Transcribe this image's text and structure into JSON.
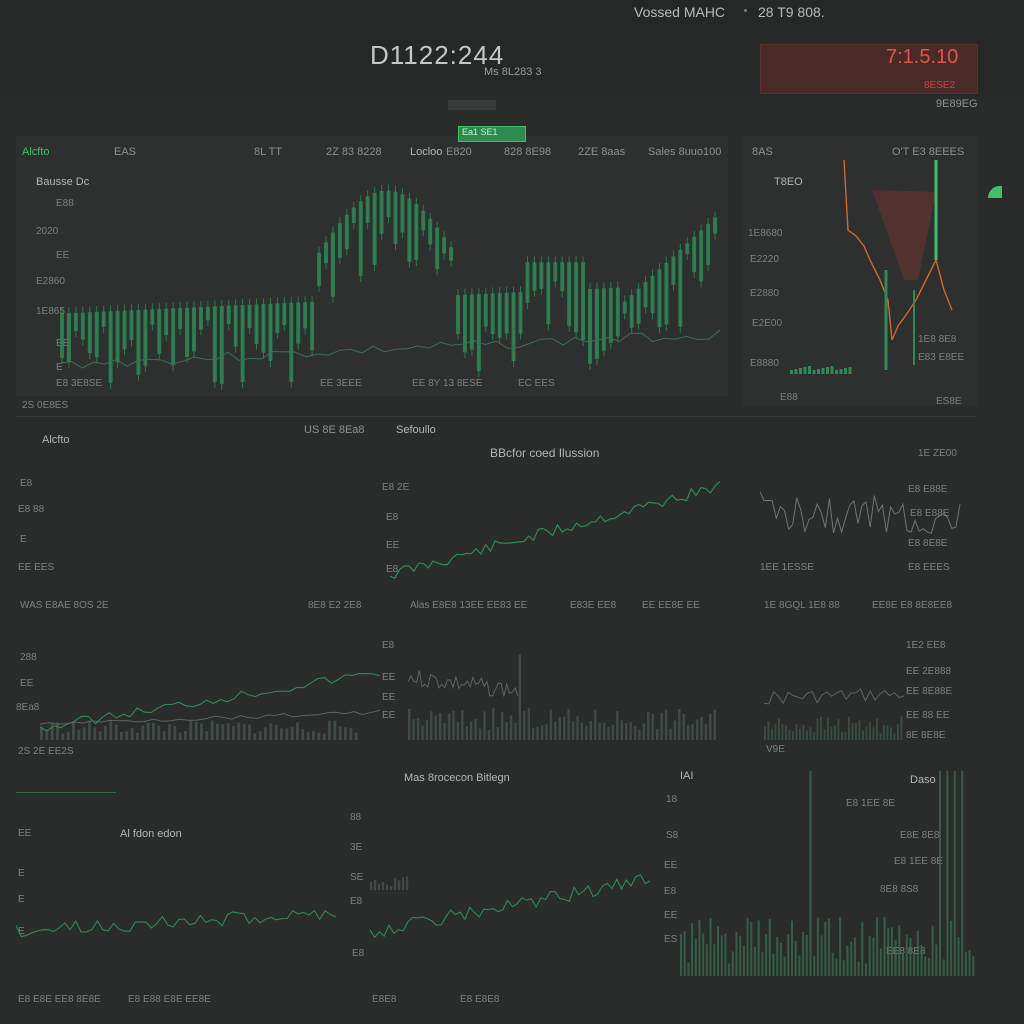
{
  "header": {
    "title": "Vossed MAHC",
    "value": "28 T9 808.",
    "clock": "D1122:244",
    "clock_sub": "Ms 8L283 3",
    "alert_value": "7:1.5.10",
    "alert_sub": "8ESE2",
    "sub_right": "9E89EG",
    "tab_label": "Ea1 SE1"
  },
  "colors": {
    "accent": "#3fbf6a",
    "alert": "#e0524a",
    "bg": "#2a2b2b",
    "panel": "#2e2f2f"
  },
  "top_row": {
    "labels": [
      "Alcfto",
      "EAS",
      "8L TT",
      "2Z 83 8228",
      "Locloo",
      "E820",
      "828 8E98",
      "2ZE 8aas",
      "Sales 8uuo100",
      "8AS",
      "O'T E3 8EEES"
    ],
    "section_title": "Bausse Dc",
    "y_ticks": [
      "E88",
      "2020",
      "EE",
      "E2860",
      "1E865",
      "EE",
      "E"
    ],
    "x_ticks": [
      "E8 3E8SE",
      "EE 3EEE",
      "EE 8Y 13 8ESE",
      "EC EES"
    ],
    "footer_left": "2S 0E8ES",
    "side_title": "T8EO",
    "side_y": [
      "1E8680",
      "E2220",
      "E2880",
      "E2E00",
      "E8880"
    ],
    "side_right_labels": [
      "1E8 8E8",
      "E83 E8EE"
    ],
    "side_footer_left": "E88",
    "side_footer_right": "ES8E"
  },
  "row2": {
    "left_title": "Alcfto",
    "mid_labels": [
      "US 8E 8Ea8",
      "Sefoullo"
    ],
    "center_title": "BBcfor  coed Ilussion",
    "left_y": [
      "E8",
      "E8 88",
      "E",
      "EE EES"
    ],
    "mid_y": [
      "E8 2E",
      "E8",
      "EE",
      "E8"
    ],
    "right_title": "1E ZE00",
    "right_y": [
      "E8 E88E",
      "E8 E88E",
      "E8 8E8E",
      "E8 EEES"
    ],
    "right_footer": "1EE 1ESSE"
  },
  "row3": {
    "labels": [
      "WAS E8AE 8OS 2E",
      "8E8 E2 2E8",
      "Alas E8E8 13EE EE83 EE",
      "E83E EE8",
      "EE EE8E EE",
      "1E 8GQL 1E8 88",
      "EE8E E8 8E8EE8"
    ],
    "left_y": [
      "288",
      "EE",
      "8Ea8"
    ],
    "left_footer": "2S 2E EE2S",
    "mid_y": [
      "E8",
      "EE",
      "EE",
      "EE"
    ],
    "right_y": [
      "1E2 EE8",
      "EE 2E888",
      "EE 8E88E",
      "EE 88 EE",
      "8E 8E8E"
    ],
    "right_footer": "V9E"
  },
  "row4": {
    "center_title": "Mas 8rocecon Bitlegn",
    "left_label": "Al fdon edon",
    "left_y": [
      "EE",
      "E",
      "E",
      "E"
    ],
    "mid_y": [
      "88",
      "3E",
      "SE",
      "E8",
      "E8"
    ],
    "right_title": "IAI",
    "right_label": "Daso",
    "right_y": [
      "18",
      "S8",
      "EE",
      "E8",
      "EE",
      "ES"
    ],
    "right_labels": [
      "E8 1EE 8E",
      "E8E 8E8",
      "E8 1EE 8E",
      "8E8 8S8",
      "EE8 8E8"
    ],
    "footer": [
      "E8 E8E EE8 8E8E",
      "E8 E88 E8E EE8E",
      "E8E8",
      "E8 E8E8"
    ]
  }
}
